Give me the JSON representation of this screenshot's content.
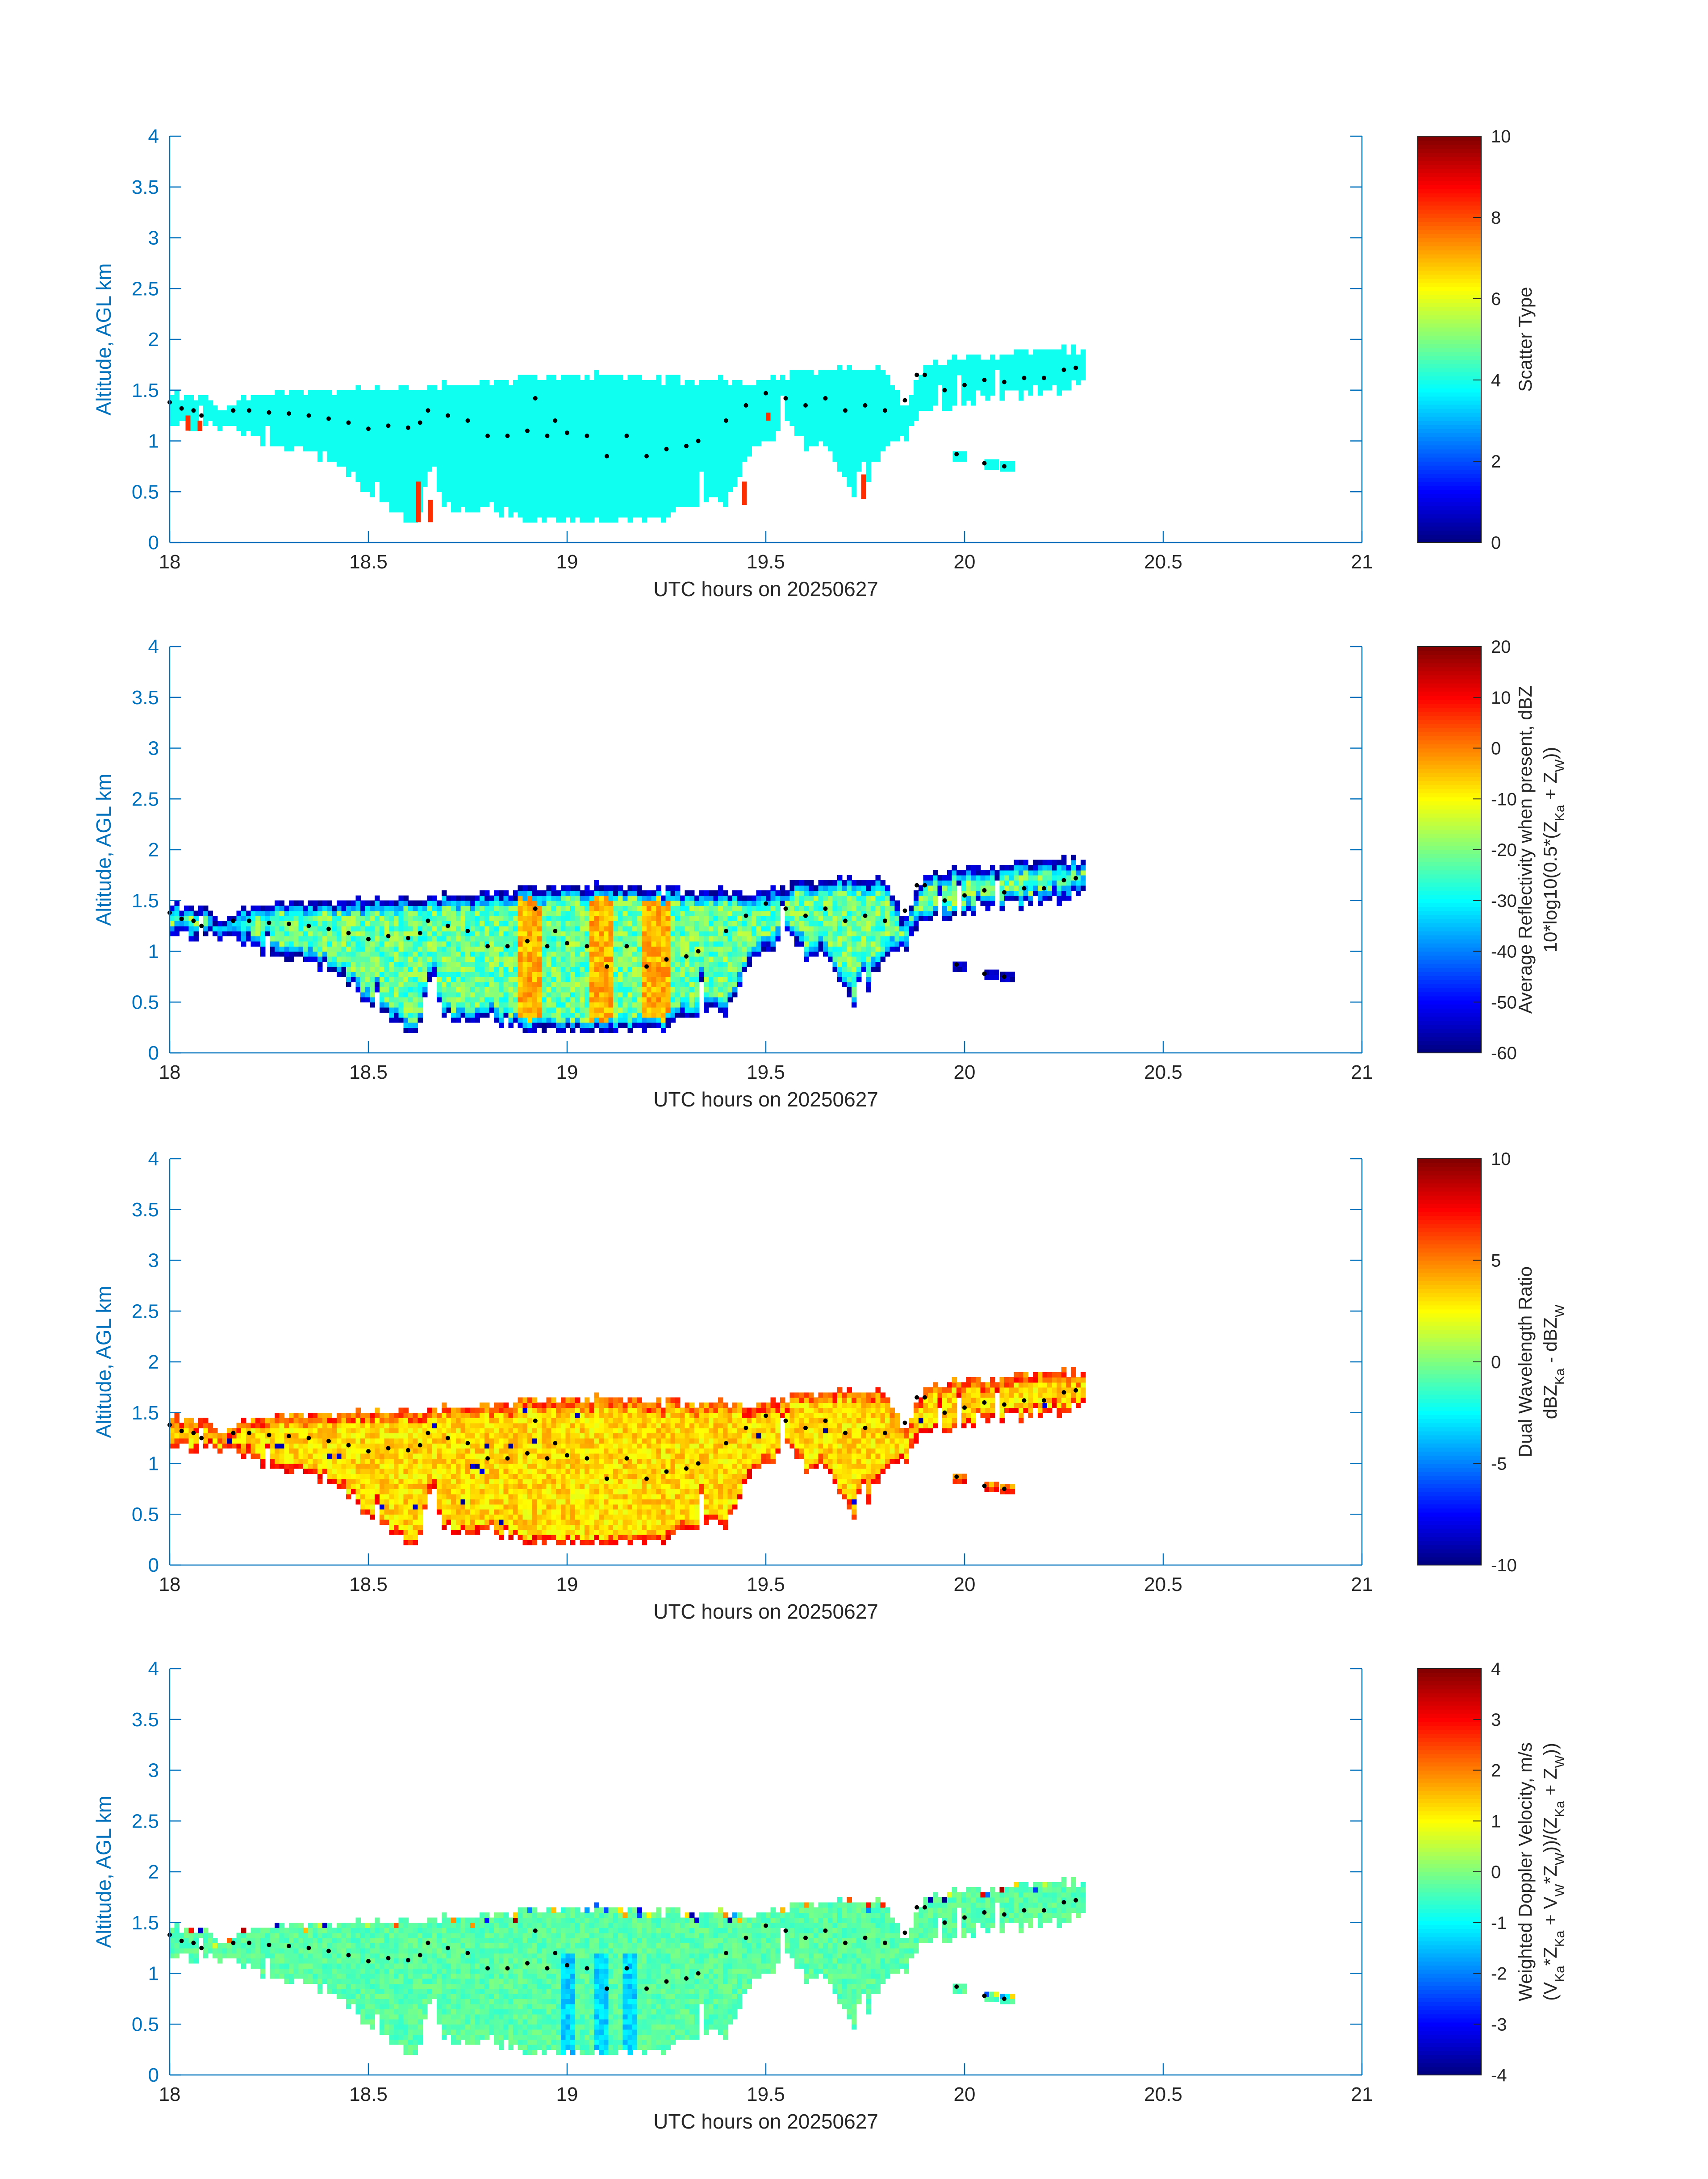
{
  "figure": {
    "axis_color": "#0072bd",
    "x_axis_label": "UTC hours on 20250627",
    "y_axis_label": "Altitude, AGL km",
    "x_ticks": [
      "18",
      "18.5",
      "19",
      "19.5",
      "20",
      "20.5",
      "21"
    ],
    "y_ticks": [
      "0",
      "0.5",
      "1",
      "1.5",
      "2",
      "2.5",
      "3",
      "3.5",
      "4"
    ],
    "colormap": "jet"
  },
  "chart_data": [
    {
      "type": "heatmap",
      "panel": 1,
      "xlabel": "UTC hours on 20250627",
      "ylabel": "Altitude, AGL km",
      "xlim": [
        18,
        21
      ],
      "ylim": [
        0,
        4
      ],
      "colorbar": {
        "label_lines": [
          "Scatter Type"
        ],
        "range": [
          0,
          10
        ],
        "ticks": [
          "0",
          "2",
          "4",
          "6",
          "8",
          "10"
        ]
      },
      "echo": {
        "value": 3.9,
        "accent_value": 8.3,
        "accent_columns": [
          {
            "x": 18.04,
            "y0": 1.1,
            "y1": 1.25
          },
          {
            "x": 18.07,
            "y0": 1.1,
            "y1": 1.2
          },
          {
            "x": 18.62,
            "y0": 0.2,
            "y1": 0.6
          },
          {
            "x": 18.65,
            "y0": 0.2,
            "y1": 0.42
          },
          {
            "x": 19.44,
            "y0": 0.37,
            "y1": 0.6
          },
          {
            "x": 19.74,
            "y0": 0.43,
            "y1": 0.67
          },
          {
            "x": 19.5,
            "y0": 1.2,
            "y1": 1.28
          }
        ]
      },
      "cloud_base_points": [
        [
          18.0,
          1.38
        ],
        [
          18.03,
          1.32
        ],
        [
          18.06,
          1.3
        ],
        [
          18.08,
          1.25
        ],
        [
          18.16,
          1.3
        ],
        [
          18.2,
          1.3
        ],
        [
          18.25,
          1.28
        ],
        [
          18.3,
          1.27
        ],
        [
          18.35,
          1.25
        ],
        [
          18.4,
          1.22
        ],
        [
          18.45,
          1.18
        ],
        [
          18.5,
          1.12
        ],
        [
          18.55,
          1.15
        ],
        [
          18.6,
          1.13
        ],
        [
          18.63,
          1.18
        ],
        [
          18.65,
          1.3
        ],
        [
          18.7,
          1.25
        ],
        [
          18.75,
          1.2
        ],
        [
          18.8,
          1.05
        ],
        [
          18.85,
          1.05
        ],
        [
          18.9,
          1.1
        ],
        [
          18.92,
          1.42
        ],
        [
          18.95,
          1.05
        ],
        [
          18.97,
          1.2
        ],
        [
          19.0,
          1.08
        ],
        [
          19.05,
          1.05
        ],
        [
          19.1,
          0.85
        ],
        [
          19.15,
          1.05
        ],
        [
          19.2,
          0.85
        ],
        [
          19.25,
          0.92
        ],
        [
          19.3,
          0.95
        ],
        [
          19.33,
          1.0
        ],
        [
          19.4,
          1.2
        ],
        [
          19.45,
          1.35
        ],
        [
          19.5,
          1.47
        ],
        [
          19.55,
          1.42
        ],
        [
          19.6,
          1.35
        ],
        [
          19.65,
          1.42
        ],
        [
          19.7,
          1.3
        ],
        [
          19.75,
          1.35
        ],
        [
          19.8,
          1.3
        ],
        [
          19.85,
          1.4
        ],
        [
          19.88,
          1.65
        ],
        [
          19.9,
          1.65
        ],
        [
          19.95,
          1.5
        ],
        [
          20.0,
          1.55
        ],
        [
          20.05,
          1.6
        ],
        [
          20.1,
          1.58
        ],
        [
          20.15,
          1.62
        ],
        [
          20.2,
          1.62
        ],
        [
          20.25,
          1.7
        ],
        [
          20.28,
          1.72
        ],
        [
          19.98,
          0.87
        ],
        [
          20.05,
          0.78
        ],
        [
          20.1,
          0.75
        ]
      ]
    },
    {
      "type": "heatmap",
      "panel": 2,
      "xlabel": "UTC hours on 20250627",
      "ylabel": "Altitude, AGL km",
      "xlim": [
        18,
        21
      ],
      "ylim": [
        0,
        4
      ],
      "colorbar": {
        "label_lines": [
          "Average Reflectivity when present, dBZ",
          "10*log10(0.5*(Z_Ka + Z_W))"
        ],
        "range": [
          -60,
          20
        ],
        "ticks": [
          "-60",
          "-50",
          "-40",
          "-30",
          "-20",
          "-10",
          "0",
          "10",
          "20"
        ]
      },
      "echo": {
        "interior_value": -22,
        "edge_value": -55,
        "core_value": -4,
        "core_times": [
          18.9,
          19.08,
          19.22
        ]
      },
      "cloud_base_points": [
        [
          18.0,
          1.38
        ],
        [
          18.03,
          1.32
        ],
        [
          18.06,
          1.3
        ],
        [
          18.08,
          1.25
        ],
        [
          18.16,
          1.3
        ],
        [
          18.2,
          1.3
        ],
        [
          18.25,
          1.28
        ],
        [
          18.3,
          1.27
        ],
        [
          18.35,
          1.25
        ],
        [
          18.4,
          1.22
        ],
        [
          18.45,
          1.18
        ],
        [
          18.5,
          1.12
        ],
        [
          18.55,
          1.15
        ],
        [
          18.6,
          1.13
        ],
        [
          18.63,
          1.18
        ],
        [
          18.65,
          1.3
        ],
        [
          18.7,
          1.25
        ],
        [
          18.75,
          1.2
        ],
        [
          18.8,
          1.05
        ],
        [
          18.85,
          1.05
        ],
        [
          18.9,
          1.1
        ],
        [
          18.92,
          1.42
        ],
        [
          18.95,
          1.05
        ],
        [
          18.97,
          1.2
        ],
        [
          19.0,
          1.08
        ],
        [
          19.05,
          1.05
        ],
        [
          19.1,
          0.85
        ],
        [
          19.15,
          1.05
        ],
        [
          19.2,
          0.85
        ],
        [
          19.25,
          0.92
        ],
        [
          19.3,
          0.95
        ],
        [
          19.33,
          1.0
        ],
        [
          19.4,
          1.2
        ],
        [
          19.45,
          1.35
        ],
        [
          19.5,
          1.47
        ],
        [
          19.55,
          1.42
        ],
        [
          19.6,
          1.35
        ],
        [
          19.65,
          1.42
        ],
        [
          19.7,
          1.3
        ],
        [
          19.75,
          1.35
        ],
        [
          19.8,
          1.3
        ],
        [
          19.85,
          1.4
        ],
        [
          19.88,
          1.65
        ],
        [
          19.9,
          1.65
        ],
        [
          19.95,
          1.5
        ],
        [
          20.0,
          1.55
        ],
        [
          20.05,
          1.6
        ],
        [
          20.1,
          1.58
        ],
        [
          20.15,
          1.62
        ],
        [
          20.2,
          1.62
        ],
        [
          20.25,
          1.7
        ],
        [
          20.28,
          1.72
        ],
        [
          19.98,
          0.87
        ],
        [
          20.05,
          0.78
        ],
        [
          20.1,
          0.75
        ]
      ]
    },
    {
      "type": "heatmap",
      "panel": 3,
      "xlabel": "UTC hours on 20250627",
      "ylabel": "Altitude, AGL km",
      "xlim": [
        18,
        21
      ],
      "ylim": [
        0,
        4
      ],
      "colorbar": {
        "label_lines": [
          "Dual Wavelength Ratio",
          "dBZ_Ka - dBZ_W"
        ],
        "range": [
          -10,
          10
        ],
        "ticks": [
          "-10",
          "-5",
          "0",
          "5",
          "10"
        ]
      },
      "echo": {
        "interior_value": 3.2,
        "edge_value": 5.5,
        "bottom_value": 7.0
      },
      "cloud_base_points": [
        [
          18.0,
          1.38
        ],
        [
          18.03,
          1.32
        ],
        [
          18.06,
          1.3
        ],
        [
          18.08,
          1.25
        ],
        [
          18.16,
          1.3
        ],
        [
          18.2,
          1.3
        ],
        [
          18.25,
          1.28
        ],
        [
          18.3,
          1.27
        ],
        [
          18.35,
          1.25
        ],
        [
          18.4,
          1.22
        ],
        [
          18.45,
          1.18
        ],
        [
          18.5,
          1.12
        ],
        [
          18.55,
          1.15
        ],
        [
          18.6,
          1.13
        ],
        [
          18.63,
          1.18
        ],
        [
          18.65,
          1.3
        ],
        [
          18.7,
          1.25
        ],
        [
          18.75,
          1.2
        ],
        [
          18.8,
          1.05
        ],
        [
          18.85,
          1.05
        ],
        [
          18.9,
          1.1
        ],
        [
          18.92,
          1.42
        ],
        [
          18.95,
          1.05
        ],
        [
          18.97,
          1.2
        ],
        [
          19.0,
          1.08
        ],
        [
          19.05,
          1.05
        ],
        [
          19.1,
          0.85
        ],
        [
          19.15,
          1.05
        ],
        [
          19.2,
          0.85
        ],
        [
          19.25,
          0.92
        ],
        [
          19.3,
          0.95
        ],
        [
          19.33,
          1.0
        ],
        [
          19.4,
          1.2
        ],
        [
          19.45,
          1.35
        ],
        [
          19.5,
          1.47
        ],
        [
          19.55,
          1.42
        ],
        [
          19.6,
          1.35
        ],
        [
          19.65,
          1.42
        ],
        [
          19.7,
          1.3
        ],
        [
          19.75,
          1.35
        ],
        [
          19.8,
          1.3
        ],
        [
          19.85,
          1.4
        ],
        [
          19.88,
          1.65
        ],
        [
          19.9,
          1.65
        ],
        [
          19.95,
          1.5
        ],
        [
          20.0,
          1.55
        ],
        [
          20.05,
          1.6
        ],
        [
          20.1,
          1.58
        ],
        [
          20.15,
          1.62
        ],
        [
          20.2,
          1.62
        ],
        [
          20.25,
          1.7
        ],
        [
          20.28,
          1.72
        ],
        [
          19.98,
          0.87
        ],
        [
          20.05,
          0.78
        ],
        [
          20.1,
          0.75
        ]
      ]
    },
    {
      "type": "heatmap",
      "panel": 4,
      "xlabel": "UTC hours on 20250627",
      "ylabel": "Altitude, AGL km",
      "xlim": [
        18,
        21
      ],
      "ylim": [
        0,
        4
      ],
      "colorbar": {
        "label_lines": [
          "Weighted Doppler Velocity, m/s",
          "(V_Ka*Z_Ka + V_W*Z_W))/(Z_Ka + Z_W))"
        ],
        "range": [
          -4,
          4
        ],
        "ticks": [
          "-4",
          "-3",
          "-2",
          "-1",
          "0",
          "1",
          "2",
          "3",
          "4"
        ]
      },
      "echo": {
        "interior_value": -0.3,
        "streak_value": -1.3,
        "streak_times": [
          19.0,
          19.08,
          19.15
        ]
      },
      "cloud_base_points": [
        [
          18.0,
          1.38
        ],
        [
          18.03,
          1.32
        ],
        [
          18.06,
          1.3
        ],
        [
          18.08,
          1.25
        ],
        [
          18.16,
          1.3
        ],
        [
          18.2,
          1.3
        ],
        [
          18.25,
          1.28
        ],
        [
          18.3,
          1.27
        ],
        [
          18.35,
          1.25
        ],
        [
          18.4,
          1.22
        ],
        [
          18.45,
          1.18
        ],
        [
          18.5,
          1.12
        ],
        [
          18.55,
          1.15
        ],
        [
          18.6,
          1.13
        ],
        [
          18.63,
          1.18
        ],
        [
          18.65,
          1.3
        ],
        [
          18.7,
          1.25
        ],
        [
          18.75,
          1.2
        ],
        [
          18.8,
          1.05
        ],
        [
          18.85,
          1.05
        ],
        [
          18.9,
          1.1
        ],
        [
          18.92,
          1.42
        ],
        [
          18.95,
          1.05
        ],
        [
          18.97,
          1.2
        ],
        [
          19.0,
          1.08
        ],
        [
          19.05,
          1.05
        ],
        [
          19.1,
          0.85
        ],
        [
          19.15,
          1.05
        ],
        [
          19.2,
          0.85
        ],
        [
          19.25,
          0.92
        ],
        [
          19.3,
          0.95
        ],
        [
          19.33,
          1.0
        ],
        [
          19.4,
          1.2
        ],
        [
          19.45,
          1.35
        ],
        [
          19.5,
          1.47
        ],
        [
          19.55,
          1.42
        ],
        [
          19.6,
          1.35
        ],
        [
          19.65,
          1.42
        ],
        [
          19.7,
          1.3
        ],
        [
          19.75,
          1.35
        ],
        [
          19.8,
          1.3
        ],
        [
          19.85,
          1.4
        ],
        [
          19.88,
          1.65
        ],
        [
          19.9,
          1.65
        ],
        [
          19.95,
          1.5
        ],
        [
          20.0,
          1.55
        ],
        [
          20.05,
          1.6
        ],
        [
          20.1,
          1.58
        ],
        [
          20.15,
          1.62
        ],
        [
          20.2,
          1.62
        ],
        [
          20.25,
          1.7
        ],
        [
          20.28,
          1.72
        ],
        [
          19.98,
          0.87
        ],
        [
          20.05,
          0.78
        ],
        [
          20.1,
          0.75
        ]
      ]
    }
  ]
}
